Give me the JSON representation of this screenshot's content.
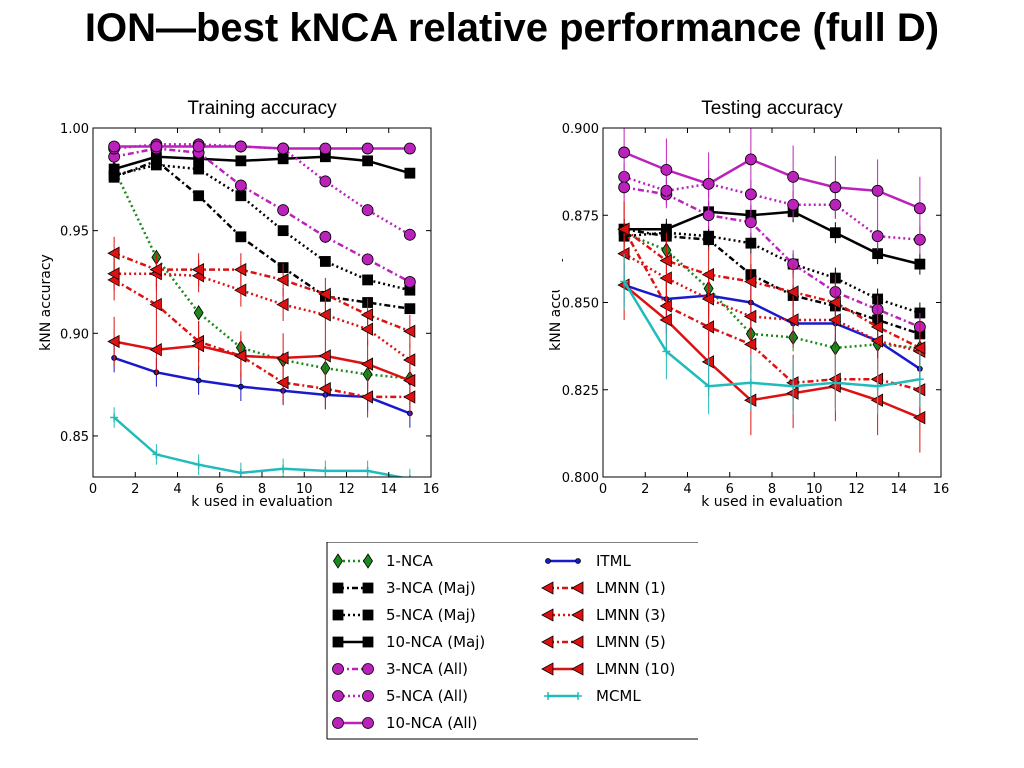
{
  "slide_title": "ION—best kNCA relative performance (full D)",
  "chart_data": [
    {
      "type": "line",
      "title": "Training accuracy",
      "xlabel": "k used in evaluation",
      "ylabel": "kNN accuracy",
      "xlim": [
        0,
        16
      ],
      "ylim": [
        0.83,
        1.0
      ],
      "xticks": [
        "0",
        "2",
        "4",
        "6",
        "8",
        "10",
        "12",
        "14",
        "16"
      ],
      "yticks": [
        "1.00",
        "0.95",
        "0.90",
        "0.85"
      ],
      "x": [
        1,
        3,
        5,
        7,
        9,
        11,
        13,
        15
      ],
      "series": [
        {
          "name": "1-NCA",
          "values": [
            0.98,
            0.937,
            0.91,
            0.893,
            0.887,
            0.883,
            0.88,
            0.878
          ],
          "err": 0.003
        },
        {
          "name": "3-NCA (Maj)",
          "values": [
            0.976,
            0.984,
            0.967,
            0.947,
            0.932,
            0.918,
            0.915,
            0.912
          ],
          "err": 0.002
        },
        {
          "name": "5-NCA (Maj)",
          "values": [
            0.977,
            0.982,
            0.98,
            0.967,
            0.95,
            0.935,
            0.926,
            0.921
          ],
          "err": 0.002
        },
        {
          "name": "10-NCA (Maj)",
          "values": [
            0.98,
            0.986,
            0.985,
            0.984,
            0.985,
            0.986,
            0.984,
            0.978
          ],
          "err": 0.002
        },
        {
          "name": "3-NCA (All)",
          "values": [
            0.986,
            0.99,
            0.988,
            0.972,
            0.96,
            0.947,
            0.936,
            0.925
          ],
          "err": 0.003
        },
        {
          "name": "5-NCA (All)",
          "values": [
            0.99,
            0.992,
            0.992,
            0.991,
            0.99,
            0.974,
            0.96,
            0.948
          ],
          "err": 0.003
        },
        {
          "name": "10-NCA (All)",
          "values": [
            0.991,
            0.991,
            0.991,
            0.991,
            0.99,
            0.99,
            0.99,
            0.99
          ],
          "err": 0.001
        },
        {
          "name": "ITML",
          "values": [
            0.888,
            0.881,
            0.877,
            0.874,
            0.872,
            0.87,
            0.869,
            0.861
          ],
          "err": 0.007
        },
        {
          "name": "LMNN (1)",
          "values": [
            0.926,
            0.914,
            0.896,
            0.889,
            0.876,
            0.873,
            0.869,
            0.869
          ],
          "err": 0.01
        },
        {
          "name": "LMNN (3)",
          "values": [
            0.929,
            0.929,
            0.928,
            0.921,
            0.914,
            0.909,
            0.902,
            0.887
          ],
          "err": 0.008
        },
        {
          "name": "LMNN (5)",
          "values": [
            0.939,
            0.931,
            0.931,
            0.931,
            0.926,
            0.919,
            0.909,
            0.901
          ],
          "err": 0.008
        },
        {
          "name": "LMNN (10)",
          "values": [
            0.896,
            0.892,
            0.894,
            0.889,
            0.888,
            0.889,
            0.885,
            0.877
          ],
          "err": 0.012
        },
        {
          "name": "MCML",
          "values": [
            0.859,
            0.841,
            0.836,
            0.832,
            0.834,
            0.833,
            0.833,
            0.829
          ],
          "err": 0.005
        }
      ]
    },
    {
      "type": "line",
      "title": "Testing accuracy",
      "xlabel": "k used in evaluation",
      "ylabel": "kNN accuracy",
      "xlim": [
        0,
        16
      ],
      "ylim": [
        0.8,
        0.9
      ],
      "xticks": [
        "0",
        "2",
        "4",
        "6",
        "8",
        "10",
        "12",
        "14",
        "16"
      ],
      "yticks": [
        "0.900",
        "0.875",
        "0.850",
        "0.825",
        "0.800"
      ],
      "x": [
        1,
        3,
        5,
        7,
        9,
        11,
        13,
        15
      ],
      "series": [
        {
          "name": "1-NCA",
          "values": [
            0.87,
            0.865,
            0.854,
            0.841,
            0.84,
            0.837,
            0.838,
            0.837
          ],
          "err": 0.004
        },
        {
          "name": "3-NCA (Maj)",
          "values": [
            0.871,
            0.869,
            0.868,
            0.858,
            0.852,
            0.849,
            0.845,
            0.841
          ],
          "err": 0.003
        },
        {
          "name": "5-NCA (Maj)",
          "values": [
            0.869,
            0.87,
            0.869,
            0.867,
            0.861,
            0.857,
            0.851,
            0.847
          ],
          "err": 0.003
        },
        {
          "name": "10-NCA (Maj)",
          "values": [
            0.871,
            0.871,
            0.876,
            0.875,
            0.876,
            0.87,
            0.864,
            0.861
          ],
          "err": 0.003
        },
        {
          "name": "3-NCA (All)",
          "values": [
            0.883,
            0.881,
            0.875,
            0.873,
            0.861,
            0.853,
            0.848,
            0.843
          ],
          "err": 0.004
        },
        {
          "name": "5-NCA (All)",
          "values": [
            0.886,
            0.882,
            0.884,
            0.881,
            0.878,
            0.878,
            0.869,
            0.868
          ],
          "err": 0.004
        },
        {
          "name": "10-NCA (All)",
          "values": [
            0.893,
            0.888,
            0.884,
            0.891,
            0.886,
            0.883,
            0.882,
            0.877
          ],
          "err": 0.009
        },
        {
          "name": "ITML",
          "values": [
            0.855,
            0.851,
            0.852,
            0.85,
            0.844,
            0.844,
            0.839,
            0.831
          ],
          "err": 0.006
        },
        {
          "name": "LMNN (1)",
          "values": [
            0.871,
            0.849,
            0.843,
            0.838,
            0.827,
            0.828,
            0.828,
            0.825
          ],
          "err": 0.008
        },
        {
          "name": "LMNN (3)",
          "values": [
            0.864,
            0.857,
            0.851,
            0.846,
            0.845,
            0.845,
            0.839,
            0.836
          ],
          "err": 0.008
        },
        {
          "name": "LMNN (5)",
          "values": [
            0.871,
            0.862,
            0.858,
            0.856,
            0.853,
            0.85,
            0.843,
            0.837
          ],
          "err": 0.008
        },
        {
          "name": "LMNN (10)",
          "values": [
            0.855,
            0.845,
            0.833,
            0.822,
            0.824,
            0.826,
            0.822,
            0.817
          ],
          "err": 0.01
        },
        {
          "name": "MCML",
          "values": [
            0.856,
            0.836,
            0.826,
            0.827,
            0.826,
            0.827,
            0.826,
            0.828
          ],
          "err": 0.008
        }
      ]
    }
  ],
  "legend_entries": [
    "1-NCA",
    "3-NCA (Maj)",
    "5-NCA (Maj)",
    "10-NCA (Maj)",
    "3-NCA (All)",
    "5-NCA (All)",
    "10-NCA (All)",
    "ITML",
    "LMNN (1)",
    "LMNN (3)",
    "LMNN (5)",
    "LMNN (10)",
    "MCML"
  ],
  "series_styles": {
    "1-NCA": {
      "color": "#1a8a1a",
      "marker": "diamond",
      "dash": "dot"
    },
    "3-NCA (Maj)": {
      "color": "#000000",
      "marker": "square",
      "dash": "dashdot"
    },
    "5-NCA (Maj)": {
      "color": "#000000",
      "marker": "square",
      "dash": "dot"
    },
    "10-NCA (Maj)": {
      "color": "#000000",
      "marker": "square",
      "dash": "solid"
    },
    "3-NCA (All)": {
      "color": "#bb22bb",
      "marker": "circle",
      "dash": "dashdot"
    },
    "5-NCA (All)": {
      "color": "#bb22bb",
      "marker": "circle",
      "dash": "dot"
    },
    "10-NCA (All)": {
      "color": "#bb22bb",
      "marker": "circle",
      "dash": "solid"
    },
    "ITML": {
      "color": "#1a1acc",
      "marker": "smallcircle",
      "dash": "solid"
    },
    "LMNN (1)": {
      "color": "#dd1111",
      "marker": "triangle-left",
      "dash": "dashdot"
    },
    "LMNN (3)": {
      "color": "#dd1111",
      "marker": "triangle-left",
      "dash": "dot"
    },
    "LMNN (5)": {
      "color": "#dd1111",
      "marker": "triangle-left",
      "dash": "dashdot"
    },
    "LMNN (10)": {
      "color": "#dd1111",
      "marker": "triangle-left",
      "dash": "solid"
    },
    "MCML": {
      "color": "#22bbbb",
      "marker": "plus",
      "dash": "solid"
    }
  }
}
